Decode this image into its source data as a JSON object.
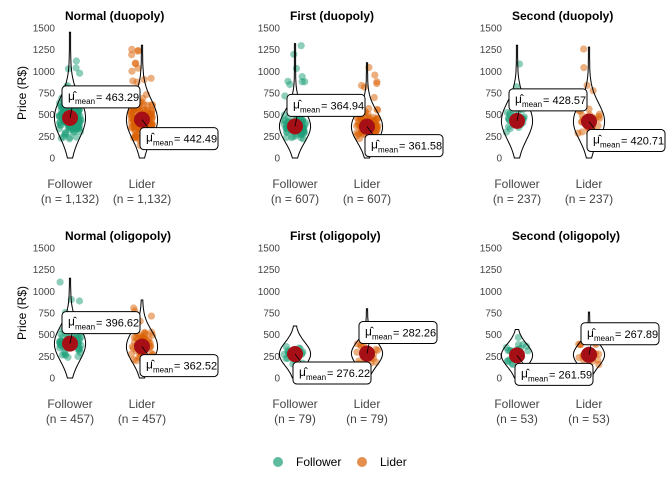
{
  "y_axis_label": "Price (R$)",
  "legend": [
    {
      "name": "Follower",
      "color": "#1B9E77"
    },
    {
      "name": "Lider",
      "color": "#D95F02"
    }
  ],
  "mean_point_color": "#A50F15",
  "chart_data": [
    {
      "type": "violin-scatter",
      "title": "Normal (duopoly)",
      "categories": [
        "Follower",
        "Lider"
      ],
      "n_labels": [
        "(n = 1,132)",
        "(n = 1,132)"
      ],
      "means": [
        463.29,
        442.49
      ],
      "mean_labels": [
        "463.29",
        "442.49"
      ],
      "max": [
        1450,
        1300
      ],
      "ylim": [
        0,
        1500
      ],
      "yticks": [
        0,
        250,
        500,
        750,
        1000,
        1250,
        1500
      ]
    },
    {
      "type": "violin-scatter",
      "title": "First (duopoly)",
      "categories": [
        "Follower",
        "Lider"
      ],
      "n_labels": [
        "(n = 607)",
        "(n = 607)"
      ],
      "means": [
        364.94,
        361.58
      ],
      "mean_labels": [
        "364.94",
        "361.58"
      ],
      "max": [
        1320,
        1100
      ],
      "ylim": [
        0,
        1500
      ],
      "yticks": [
        0,
        250,
        500,
        750,
        1000,
        1250,
        1500
      ]
    },
    {
      "type": "violin-scatter",
      "title": "Second (duopoly)",
      "categories": [
        "Follower",
        "Lider"
      ],
      "n_labels": [
        "(n = 237)",
        "(n = 237)"
      ],
      "means": [
        428.57,
        420.71
      ],
      "mean_labels": [
        "428.57",
        "420.71"
      ],
      "max": [
        1300,
        1280
      ],
      "ylim": [
        0,
        1500
      ],
      "yticks": [
        0,
        250,
        500,
        750,
        1000,
        1250,
        1500
      ]
    },
    {
      "type": "violin-scatter",
      "title": "Normal (oligopoly)",
      "categories": [
        "Follower",
        "Lider"
      ],
      "n_labels": [
        "(n = 457)",
        "(n = 457)"
      ],
      "means": [
        396.62,
        362.52
      ],
      "mean_labels": [
        "396.62",
        "362.52"
      ],
      "max": [
        1150,
        900
      ],
      "ylim": [
        0,
        1500
      ],
      "yticks": [
        0,
        250,
        500,
        750,
        1000,
        1250,
        1500
      ]
    },
    {
      "type": "violin-scatter",
      "title": "First (oligopoly)",
      "categories": [
        "Follower",
        "Lider"
      ],
      "n_labels": [
        "(n = 79)",
        "(n = 79)"
      ],
      "means": [
        276.22,
        282.26
      ],
      "mean_labels": [
        "276.22",
        "282.26"
      ],
      "max": [
        600,
        800
      ],
      "ylim": [
        0,
        1500
      ],
      "yticks": [
        0,
        250,
        500,
        750,
        1000,
        1250,
        1500
      ]
    },
    {
      "type": "violin-scatter",
      "title": "Second (oligopoly)",
      "categories": [
        "Follower",
        "Lider"
      ],
      "n_labels": [
        "(n = 53)",
        "(n = 53)"
      ],
      "means": [
        261.59,
        267.89
      ],
      "mean_labels": [
        "261.59",
        "267.89"
      ],
      "max": [
        560,
        760
      ],
      "ylim": [
        0,
        1500
      ],
      "yticks": [
        0,
        250,
        500,
        750,
        1000,
        1250,
        1500
      ]
    }
  ]
}
